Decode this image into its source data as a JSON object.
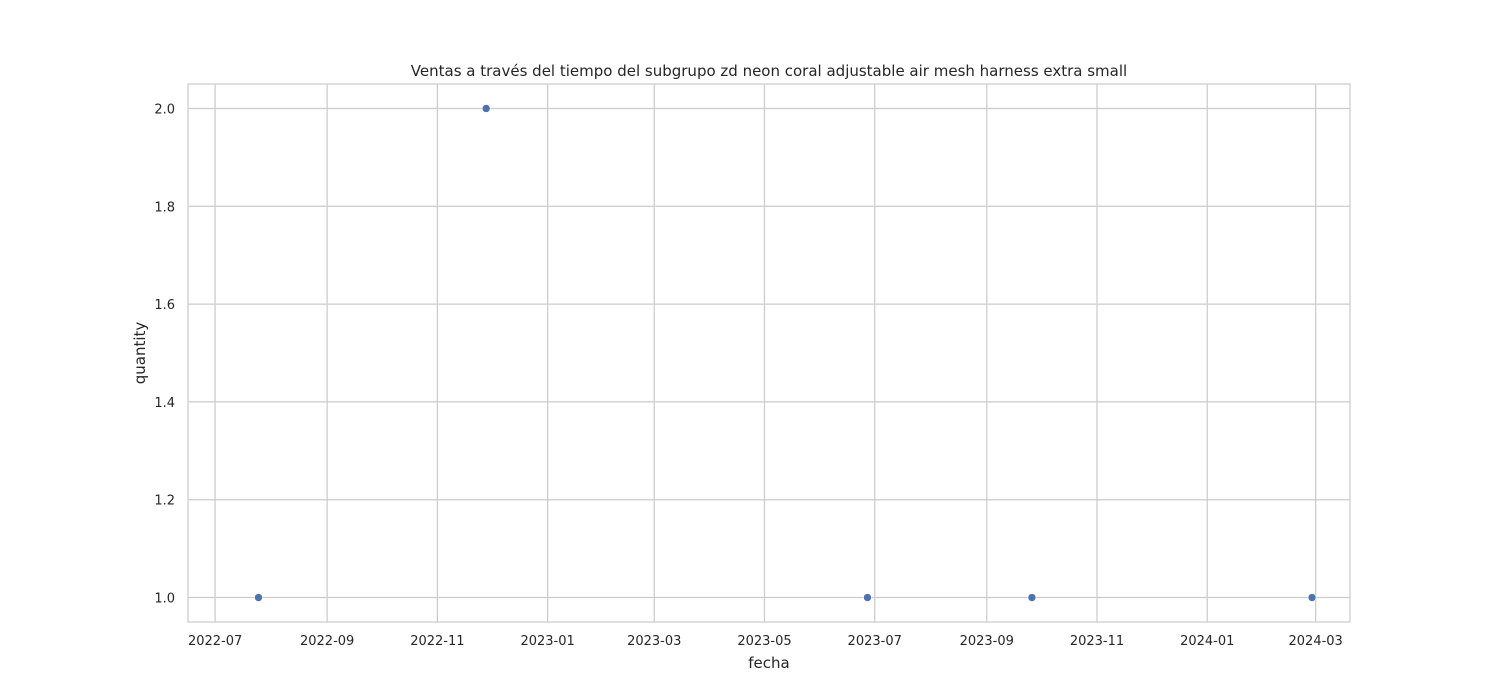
{
  "chart_data": {
    "type": "scatter",
    "title": "Ventas a través del tiempo del subgrupo zd neon coral adjustable air mesh harness extra small",
    "xlabel": "fecha",
    "ylabel": "quantity",
    "x_axis_type": "date",
    "xlim": [
      "2022-06-16",
      "2024-03-20"
    ],
    "ylim": [
      0.95,
      2.05
    ],
    "x_ticks": [
      {
        "value": "2022-07-01",
        "label": "2022-07"
      },
      {
        "value": "2022-09-01",
        "label": "2022-09"
      },
      {
        "value": "2022-11-01",
        "label": "2022-11"
      },
      {
        "value": "2023-01-01",
        "label": "2023-01"
      },
      {
        "value": "2023-03-01",
        "label": "2023-03"
      },
      {
        "value": "2023-05-01",
        "label": "2023-05"
      },
      {
        "value": "2023-07-01",
        "label": "2023-07"
      },
      {
        "value": "2023-09-01",
        "label": "2023-09"
      },
      {
        "value": "2023-11-01",
        "label": "2023-11"
      },
      {
        "value": "2024-01-01",
        "label": "2024-01"
      },
      {
        "value": "2024-03-01",
        "label": "2024-03"
      }
    ],
    "y_ticks": [
      {
        "value": 1.0,
        "label": "1.0"
      },
      {
        "value": 1.2,
        "label": "1.2"
      },
      {
        "value": 1.4,
        "label": "1.4"
      },
      {
        "value": 1.6,
        "label": "1.6"
      },
      {
        "value": 1.8,
        "label": "1.8"
      },
      {
        "value": 2.0,
        "label": "2.0"
      }
    ],
    "grid": true,
    "points": [
      {
        "x": "2022-07-25",
        "y": 1
      },
      {
        "x": "2022-11-28",
        "y": 2
      },
      {
        "x": "2023-06-27",
        "y": 1
      },
      {
        "x": "2023-09-26",
        "y": 1
      },
      {
        "x": "2024-02-28",
        "y": 1
      }
    ],
    "colors": {
      "point": "#4c72b0",
      "grid": "#cccccc",
      "frame": "#cccccc",
      "text": "#262626"
    }
  }
}
